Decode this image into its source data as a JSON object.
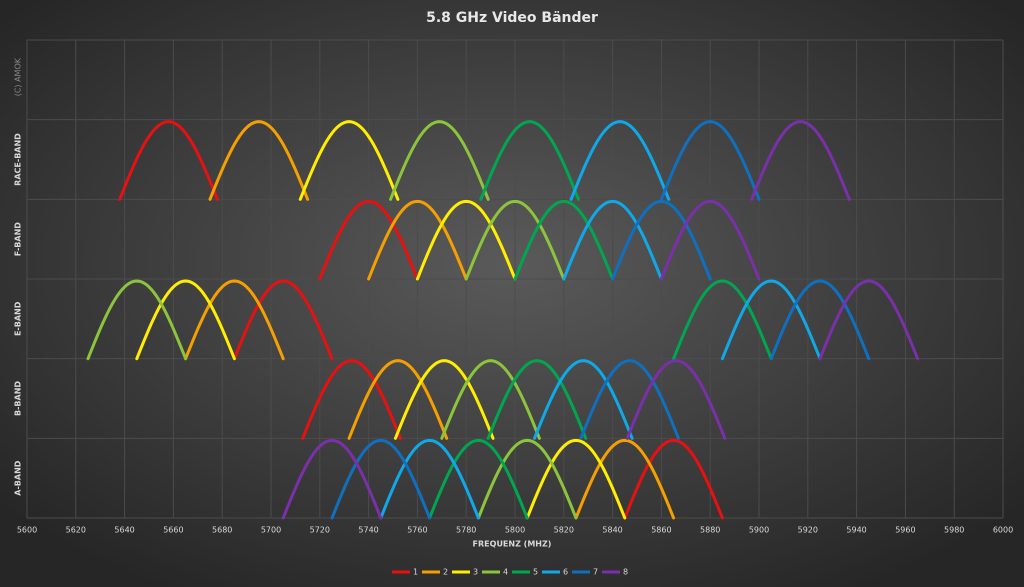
{
  "chart_data": {
    "type": "bell",
    "title": "5.8 GHz  Video  Bänder",
    "x_label": "FREQUENZ (MHZ)",
    "watermark": "(C) AMOK",
    "categories": [
      "A-BAND",
      "B-BAND",
      "E-BAND",
      "F-BAND",
      "RACE-BAND"
    ],
    "series": [
      {
        "name": "1",
        "color": "#e81010",
        "values": [
          5865,
          5733,
          5705,
          5740,
          5658
        ]
      },
      {
        "name": "2",
        "color": "#f5a000",
        "values": [
          5845,
          5752,
          5685,
          5760,
          5695
        ]
      },
      {
        "name": "3",
        "color": "#ffee00",
        "values": [
          5825,
          5771,
          5665,
          5780,
          5732
        ]
      },
      {
        "name": "4",
        "color": "#8cc43c",
        "values": [
          5805,
          5790,
          5645,
          5800,
          5769
        ]
      },
      {
        "name": "5",
        "color": "#00a650",
        "values": [
          5785,
          5809,
          5885,
          5820,
          5806
        ]
      },
      {
        "name": "6",
        "color": "#10a8e8",
        "values": [
          5765,
          5828,
          5905,
          5840,
          5843
        ]
      },
      {
        "name": "7",
        "color": "#1070c0",
        "values": [
          5745,
          5847,
          5925,
          5860,
          5880
        ]
      },
      {
        "name": "8",
        "color": "#7a30a8",
        "values": [
          5725,
          5866,
          5945,
          5880,
          5917
        ]
      }
    ],
    "xlim": [
      5600,
      6000
    ],
    "xticks": [
      5600,
      5620,
      5640,
      5660,
      5680,
      5700,
      5720,
      5740,
      5760,
      5780,
      5800,
      5820,
      5840,
      5860,
      5880,
      5900,
      5920,
      5940,
      5960,
      5980,
      6000
    ],
    "grid": true,
    "legend": "bottom"
  }
}
